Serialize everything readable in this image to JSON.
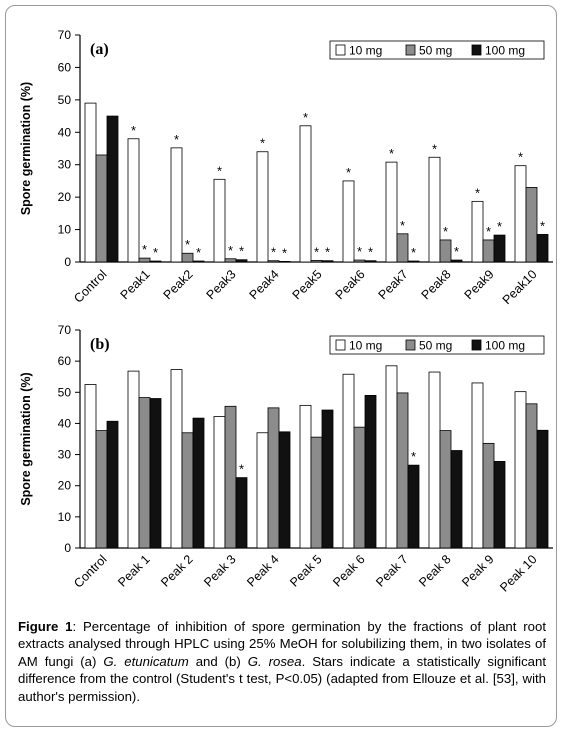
{
  "colors": {
    "s10": "#ffffff",
    "s50": "#8c8c8c",
    "s100": "#111111",
    "axis": "#000000"
  },
  "chart_data": [
    {
      "type": "bar",
      "panel_label": "(a)",
      "ylabel": "Spore germination (%)",
      "ylim": [
        0,
        70
      ],
      "yticks": [
        "0",
        "10",
        "20",
        "30",
        "40",
        "50",
        "60",
        "70"
      ],
      "categories": [
        "Control",
        "Peak1",
        "Peak2",
        "Peak3",
        "Peak4",
        "Peak5",
        "Peak6",
        "Peak7",
        "Peak8",
        "Peak9",
        "Peak10"
      ],
      "legend_position": "top-right",
      "series": [
        {
          "name": "10 mg",
          "values": [
            49,
            38,
            35.2,
            25.5,
            34,
            42,
            25,
            30.8,
            32.3,
            18.7,
            29.7
          ]
        },
        {
          "name": "50 mg",
          "values": [
            33,
            1.2,
            2.7,
            1,
            0.4,
            0.5,
            0.6,
            8.7,
            6.8,
            6.8,
            23
          ]
        },
        {
          "name": "100 mg",
          "values": [
            45,
            0.3,
            0.3,
            0.7,
            0.1,
            0.4,
            0.4,
            0.3,
            0.6,
            8.3,
            8.5
          ]
        }
      ],
      "stars": [
        [
          false,
          true,
          true,
          true,
          true,
          true,
          true,
          true,
          true,
          true,
          true
        ],
        [
          false,
          true,
          true,
          true,
          true,
          true,
          true,
          true,
          true,
          true,
          false
        ],
        [
          false,
          true,
          true,
          true,
          true,
          true,
          true,
          true,
          true,
          true,
          true
        ]
      ]
    },
    {
      "type": "bar",
      "panel_label": "(b)",
      "ylabel": "Spore germination (%)",
      "ylim": [
        0,
        70
      ],
      "yticks": [
        "0",
        "10",
        "20",
        "30",
        "40",
        "50",
        "60",
        "70"
      ],
      "categories": [
        "Control",
        "Peak 1",
        "Peak 2",
        "Peak 3",
        "Peak 4",
        "Peak 5",
        "Peak 6",
        "Peak 7",
        "Peak 8",
        "Peak 9",
        "Peak 10"
      ],
      "legend_position": "top-right",
      "series": [
        {
          "name": "10 mg",
          "values": [
            52.5,
            56.8,
            57.3,
            42.2,
            37,
            45.8,
            55.8,
            58.5,
            56.5,
            53,
            50.2
          ]
        },
        {
          "name": "50 mg",
          "values": [
            37.7,
            48.3,
            37,
            45.5,
            45,
            35.6,
            38.8,
            49.8,
            37.7,
            33.6,
            46.3
          ]
        },
        {
          "name": "100 mg",
          "values": [
            40.7,
            48,
            41.7,
            22.6,
            37.3,
            44.3,
            49,
            26.6,
            31.3,
            27.8,
            37.8
          ]
        }
      ],
      "stars": [
        [
          false,
          false,
          false,
          false,
          false,
          false,
          false,
          false,
          false,
          false,
          false
        ],
        [
          false,
          false,
          false,
          false,
          false,
          false,
          false,
          false,
          false,
          false,
          false
        ],
        [
          false,
          false,
          false,
          true,
          false,
          false,
          false,
          true,
          false,
          false,
          false
        ]
      ]
    }
  ],
  "caption": {
    "fig": "Figure 1",
    "t1": ": Percentage of inhibition of spore germination by the fractions of plant root extracts analysed through HPLC using 25% MeOH for solubilizing them, in two isolates of AM fungi (a) ",
    "sp1": "G. etunicatum",
    "t2": " and (b) ",
    "sp2": "G. rosea",
    "t3": ". Stars indicate a statistically significant difference from the control (Student's t test, P<0.05) (adapted from Ellouze et al. [53], with author's permission)."
  }
}
